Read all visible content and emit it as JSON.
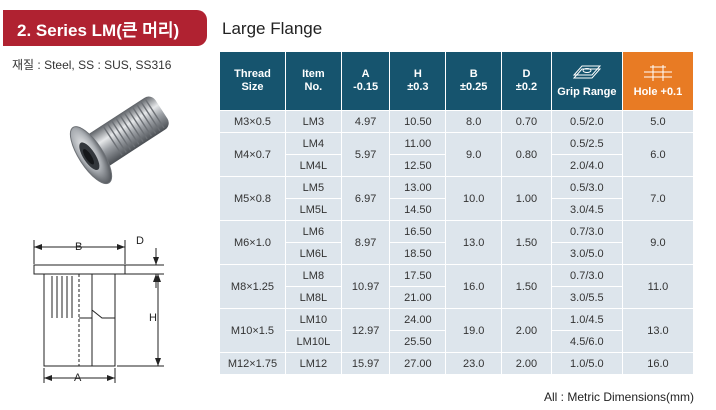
{
  "series_badge": "2. Series LM(큰 머리)",
  "material": "재질 : Steel, SS : SUS, SS316",
  "flange_title": "Large Flange",
  "drawing_labels": {
    "b": "B",
    "d": "D",
    "h": "H",
    "a": "A"
  },
  "columns": [
    {
      "line1": "Thread",
      "line2": "Size"
    },
    {
      "line1": "Item",
      "line2": "No."
    },
    {
      "line1": "A",
      "line2": "-0.15"
    },
    {
      "line1": "H",
      "line2": "±0.3"
    },
    {
      "line1": "B",
      "line2": "±0.25"
    },
    {
      "line1": "D",
      "line2": "±0.2"
    },
    {
      "line1": "",
      "line2": "Grip Range"
    },
    {
      "line1": "",
      "line2": "Hole +0.1"
    }
  ],
  "groups": [
    {
      "thread": "M3×0.5",
      "a": "4.97",
      "b": "8.0",
      "d": "0.70",
      "hole": "5.0",
      "items": [
        {
          "item": "LM3",
          "h": "10.50",
          "grip": "0.5/2.0"
        }
      ]
    },
    {
      "thread": "M4×0.7",
      "a": "5.97",
      "b": "9.0",
      "d": "0.80",
      "hole": "6.0",
      "items": [
        {
          "item": "LM4",
          "h": "11.00",
          "grip": "0.5/2.5"
        },
        {
          "item": "LM4L",
          "h": "12.50",
          "grip": "2.0/4.0"
        }
      ]
    },
    {
      "thread": "M5×0.8",
      "a": "6.97",
      "b": "10.0",
      "d": "1.00",
      "hole": "7.0",
      "items": [
        {
          "item": "LM5",
          "h": "13.00",
          "grip": "0.5/3.0"
        },
        {
          "item": "LM5L",
          "h": "14.50",
          "grip": "3.0/4.5"
        }
      ]
    },
    {
      "thread": "M6×1.0",
      "a": "8.97",
      "b": "13.0",
      "d": "1.50",
      "hole": "9.0",
      "items": [
        {
          "item": "LM6",
          "h": "16.50",
          "grip": "0.7/3.0"
        },
        {
          "item": "LM6L",
          "h": "18.50",
          "grip": "3.0/5.0"
        }
      ]
    },
    {
      "thread": "M8×1.25",
      "a": "10.97",
      "b": "16.0",
      "d": "1.50",
      "hole": "11.0",
      "items": [
        {
          "item": "LM8",
          "h": "17.50",
          "grip": "0.7/3.0"
        },
        {
          "item": "LM8L",
          "h": "21.00",
          "grip": "3.0/5.5"
        }
      ]
    },
    {
      "thread": "M10×1.5",
      "a": "12.97",
      "b": "19.0",
      "d": "2.00",
      "hole": "13.0",
      "items": [
        {
          "item": "LM10",
          "h": "24.00",
          "grip": "1.0/4.5"
        },
        {
          "item": "LM10L",
          "h": "25.50",
          "grip": "4.5/6.0"
        }
      ]
    },
    {
      "thread": "M12×1.75",
      "a": "15.97",
      "b": "23.0",
      "d": "2.00",
      "hole": "16.0",
      "items": [
        {
          "item": "LM12",
          "h": "27.00",
          "grip": "1.0/5.0"
        }
      ]
    }
  ],
  "footnote": "All : Metric Dimensions(mm)",
  "colors": {
    "badge": "#b02231",
    "header": "#16546e",
    "hole_header": "#e87b24",
    "cell": "#dde5ec"
  }
}
